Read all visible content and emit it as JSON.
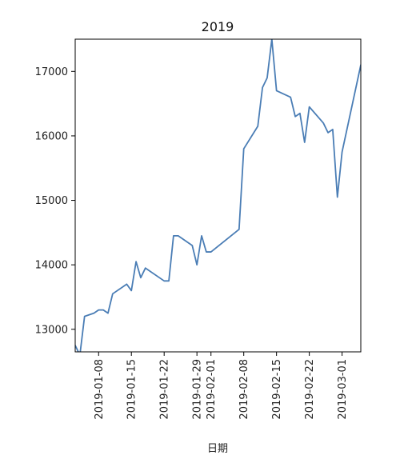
{
  "chart_data": {
    "type": "line",
    "title": "2019",
    "xlabel": "日期",
    "ylabel": "",
    "xlim": [
      "2019-01-03",
      "2019-03-05"
    ],
    "ylim": [
      12650,
      17500
    ],
    "grid": false,
    "legend": "none",
    "x_ticks": [
      "2019-01-08",
      "2019-01-15",
      "2019-01-22",
      "2019-01-29",
      "2019-02-01",
      "2019-02-08",
      "2019-02-15",
      "2019-02-22",
      "2019-03-01"
    ],
    "y_ticks": [
      13000,
      14000,
      15000,
      16000,
      17000
    ],
    "series": [
      {
        "color": "#4a7db5",
        "points": [
          {
            "x": "2019-01-03",
            "y": 12750
          },
          {
            "x": "2019-01-04",
            "y": 12600
          },
          {
            "x": "2019-01-05",
            "y": 13200
          },
          {
            "x": "2019-01-07",
            "y": 13250
          },
          {
            "x": "2019-01-08",
            "y": 13300
          },
          {
            "x": "2019-01-09",
            "y": 13300
          },
          {
            "x": "2019-01-10",
            "y": 13250
          },
          {
            "x": "2019-01-11",
            "y": 13550
          },
          {
            "x": "2019-01-14",
            "y": 13700
          },
          {
            "x": "2019-01-15",
            "y": 13600
          },
          {
            "x": "2019-01-16",
            "y": 14050
          },
          {
            "x": "2019-01-17",
            "y": 13800
          },
          {
            "x": "2019-01-18",
            "y": 13950
          },
          {
            "x": "2019-01-22",
            "y": 13750
          },
          {
            "x": "2019-01-23",
            "y": 13750
          },
          {
            "x": "2019-01-24",
            "y": 14450
          },
          {
            "x": "2019-01-25",
            "y": 14450
          },
          {
            "x": "2019-01-28",
            "y": 14300
          },
          {
            "x": "2019-01-29",
            "y": 14000
          },
          {
            "x": "2019-01-30",
            "y": 14450
          },
          {
            "x": "2019-01-31",
            "y": 14200
          },
          {
            "x": "2019-02-01",
            "y": 14200
          },
          {
            "x": "2019-02-07",
            "y": 14550
          },
          {
            "x": "2019-02-08",
            "y": 15800
          },
          {
            "x": "2019-02-11",
            "y": 16150
          },
          {
            "x": "2019-02-12",
            "y": 16750
          },
          {
            "x": "2019-02-13",
            "y": 16900
          },
          {
            "x": "2019-02-14",
            "y": 17500
          },
          {
            "x": "2019-02-15",
            "y": 16700
          },
          {
            "x": "2019-02-18",
            "y": 16600
          },
          {
            "x": "2019-02-19",
            "y": 16300
          },
          {
            "x": "2019-02-20",
            "y": 16350
          },
          {
            "x": "2019-02-21",
            "y": 15900
          },
          {
            "x": "2019-02-22",
            "y": 16450
          },
          {
            "x": "2019-02-25",
            "y": 16200
          },
          {
            "x": "2019-02-26",
            "y": 16050
          },
          {
            "x": "2019-02-27",
            "y": 16100
          },
          {
            "x": "2019-02-28",
            "y": 15050
          },
          {
            "x": "2019-03-01",
            "y": 15750
          },
          {
            "x": "2019-03-05",
            "y": 17100
          }
        ]
      }
    ]
  }
}
